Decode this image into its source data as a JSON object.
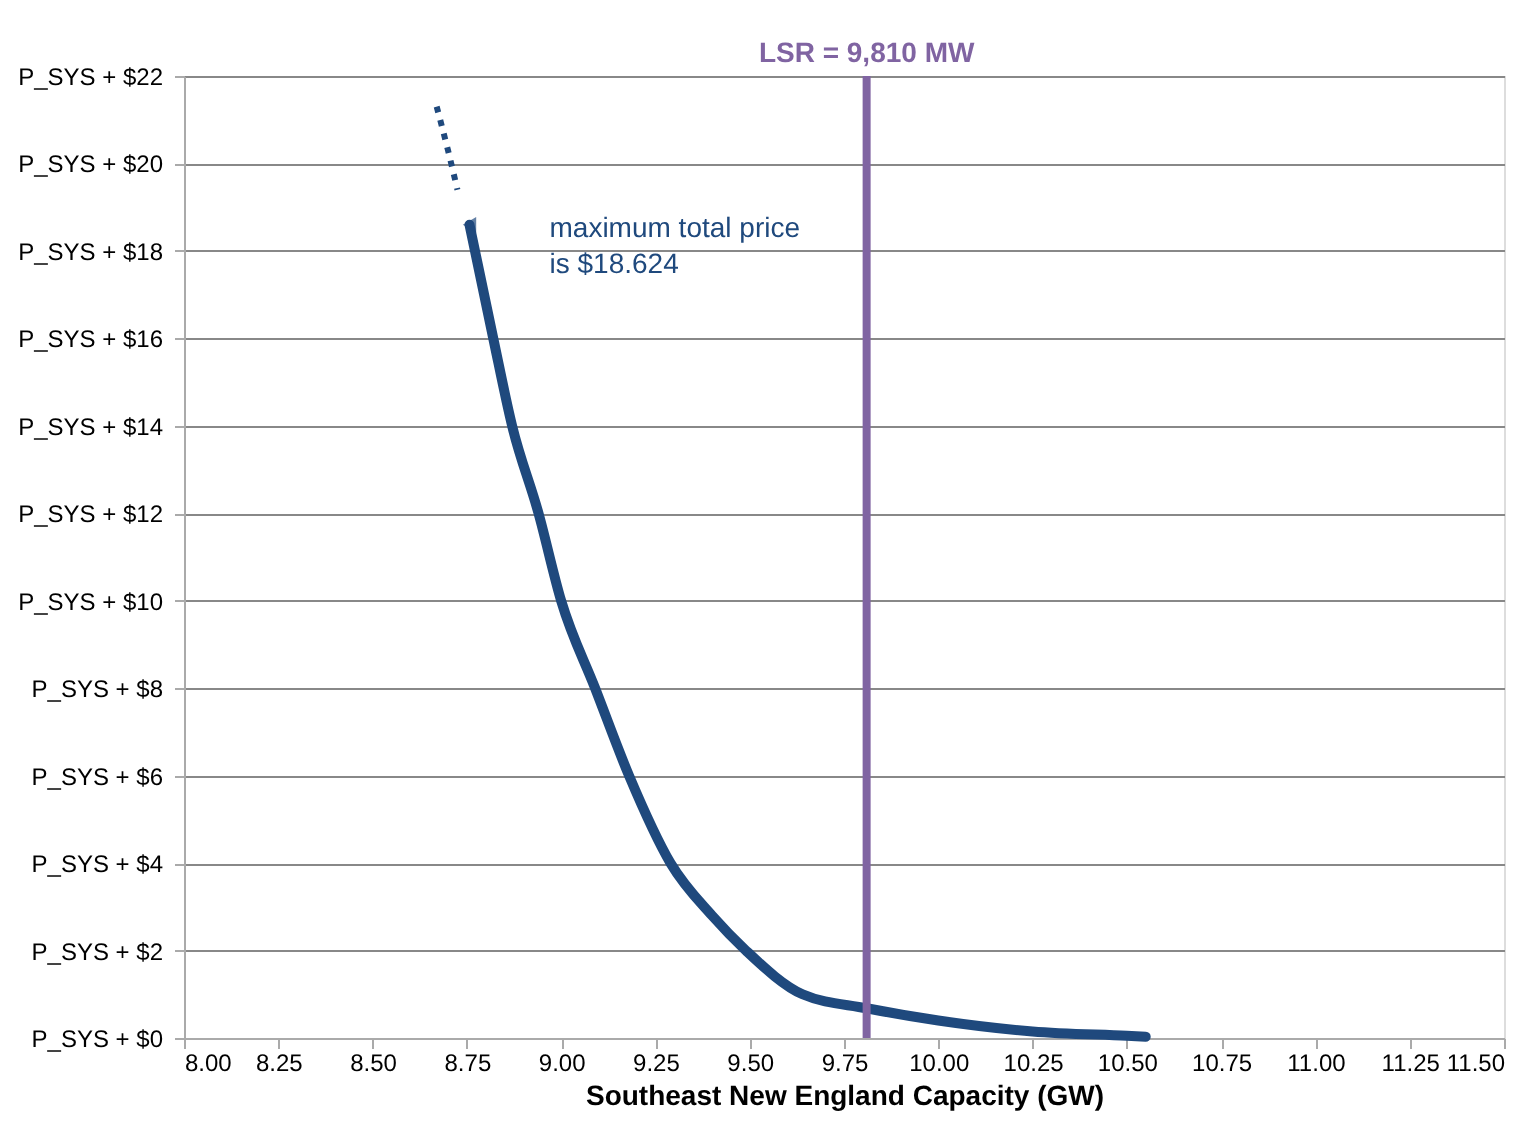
{
  "chart_data": {
    "type": "line",
    "xlabel": "Southeast New England Capacity (GW)",
    "xlim": [
      8.0,
      11.5
    ],
    "ylim": [
      0,
      22
    ],
    "xticks": [
      {
        "value": 8.0,
        "label": "8.00"
      },
      {
        "value": 8.25,
        "label": "8.25"
      },
      {
        "value": 8.5,
        "label": "8.50"
      },
      {
        "value": 8.75,
        "label": "8.75"
      },
      {
        "value": 9.0,
        "label": "9.00"
      },
      {
        "value": 9.25,
        "label": "9.25"
      },
      {
        "value": 9.5,
        "label": "9.50"
      },
      {
        "value": 9.75,
        "label": "9.75"
      },
      {
        "value": 10.0,
        "label": "10.00"
      },
      {
        "value": 10.25,
        "label": "10.25"
      },
      {
        "value": 10.5,
        "label": "10.50"
      },
      {
        "value": 10.75,
        "label": "10.75"
      },
      {
        "value": 11.0,
        "label": "11.00"
      },
      {
        "value": 11.25,
        "label": "11.25"
      },
      {
        "value": 11.5,
        "label": "11.50"
      }
    ],
    "yticks": [
      {
        "value": 0,
        "label": "P_SYS + $0"
      },
      {
        "value": 2,
        "label": "P_SYS + $2"
      },
      {
        "value": 4,
        "label": "P_SYS + $4"
      },
      {
        "value": 6,
        "label": "P_SYS + $6"
      },
      {
        "value": 8,
        "label": "P_SYS + $8"
      },
      {
        "value": 10,
        "label": "P_SYS + $10"
      },
      {
        "value": 12,
        "label": "P_SYS + $12"
      },
      {
        "value": 14,
        "label": "P_SYS + $14"
      },
      {
        "value": 16,
        "label": "P_SYS + $16"
      },
      {
        "value": 18,
        "label": "P_SYS + $18"
      },
      {
        "value": 20,
        "label": "P_SYS + $20"
      },
      {
        "value": 22,
        "label": "P_SYS + $22"
      }
    ],
    "grid": "y",
    "marker": "none",
    "series": [
      {
        "color": "#1f497d",
        "line_style": "dotted",
        "x": [
          8.67,
          8.7,
          8.725
        ],
        "values": [
          21.3,
          20.3,
          19.4
        ]
      },
      {
        "color": "#1f497d",
        "line_style": "solid",
        "x": [
          8.757,
          8.82,
          8.87,
          8.94,
          9.0,
          9.09,
          9.18,
          9.29,
          9.4,
          9.49,
          9.64,
          9.81,
          10.0,
          10.25,
          10.5,
          10.55
        ],
        "values": [
          18.6,
          16,
          14,
          12,
          10,
          8,
          6,
          4,
          2.8,
          2,
          1,
          0.68,
          0.4,
          0.15,
          0.05,
          0.03
        ]
      }
    ],
    "ref_lines": [
      {
        "axis": "x",
        "value": 9.81,
        "label": "LSR = 9,810 MW",
        "color": "#8064a2"
      }
    ],
    "annotations": [
      {
        "text": "maximum total price is $18.624",
        "x": 8.757,
        "y": 18.6
      }
    ]
  }
}
